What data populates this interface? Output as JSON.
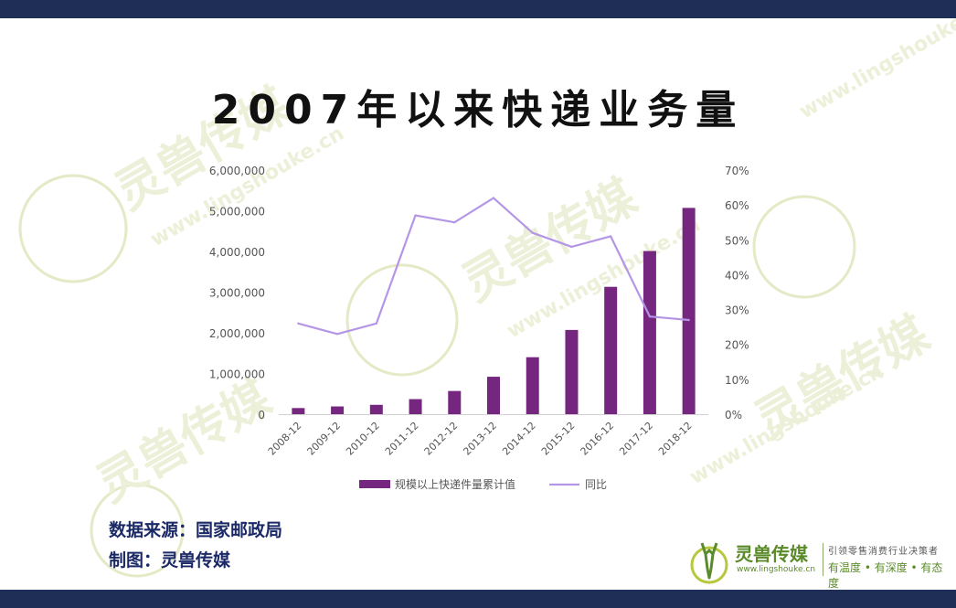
{
  "title": "2007年以来快递业务量",
  "source_text": "数据来源：国家邮政局",
  "maker_text": "制图：灵兽传媒",
  "watermark_text": "www.lingshouke.cn",
  "logo": {
    "name": "灵兽传媒",
    "url": "www.lingshouke.cn",
    "tagline": "引领零售消费行业决策者",
    "slogan": "有温度 • 有深度 • 有态度"
  },
  "colors": {
    "bar": "#75277f",
    "line": "#b596e6",
    "band": "#1f2e57",
    "source_text": "#1b2a66",
    "axis_text": "#555555"
  },
  "chart_data": {
    "type": "bar",
    "categories": [
      "2008-12",
      "2009-12",
      "2010-12",
      "2011-12",
      "2012-12",
      "2013-12",
      "2014-12",
      "2015-12",
      "2016-12",
      "2017-12",
      "2018-12"
    ],
    "series": [
      {
        "name": "规模以上快递件量累计值",
        "type": "bar",
        "axis": "left",
        "values": [
          150000,
          190000,
          230000,
          370000,
          570000,
          920000,
          1400000,
          2070000,
          3130000,
          4010000,
          5070000
        ]
      },
      {
        "name": "同比",
        "type": "line",
        "axis": "right",
        "values": [
          26,
          23,
          26,
          57,
          55,
          62,
          52,
          48,
          51,
          28,
          27
        ]
      }
    ],
    "y_left": {
      "min": 0,
      "max": 6000000,
      "ticks": [
        0,
        1000000,
        2000000,
        3000000,
        4000000,
        5000000,
        6000000
      ],
      "tick_labels": [
        "0",
        "1,000,000",
        "2,000,000",
        "3,000,000",
        "4,000,000",
        "5,000,000",
        "6,000,000"
      ]
    },
    "y_right": {
      "min": 0,
      "max": 70,
      "ticks": [
        0,
        10,
        20,
        30,
        40,
        50,
        60,
        70
      ],
      "tick_labels": [
        "0%",
        "10%",
        "20%",
        "30%",
        "40%",
        "50%",
        "60%",
        "70%"
      ]
    },
    "grid": false,
    "legend": {
      "placement": "bottom",
      "entries": [
        {
          "label": "规模以上快递件量累计值",
          "kind": "bar"
        },
        {
          "label": "同比",
          "kind": "line"
        }
      ]
    }
  }
}
